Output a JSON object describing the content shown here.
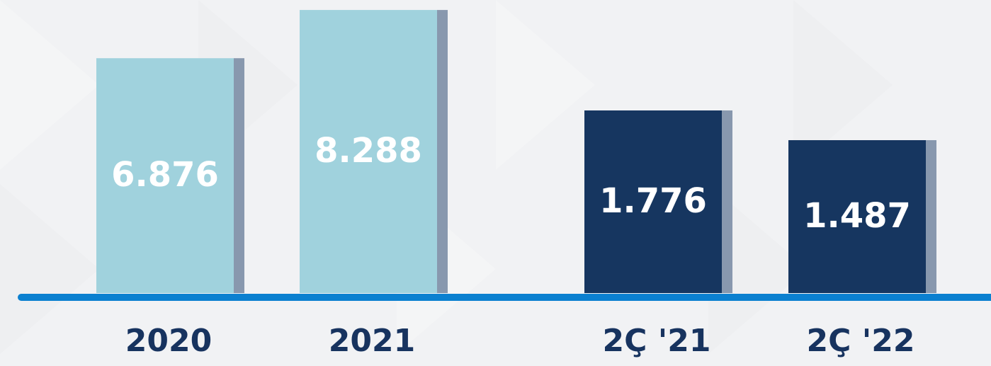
{
  "chart_data": [
    {
      "type": "bar",
      "categories": [
        "2020",
        "2021"
      ],
      "values": [
        6876,
        8288
      ],
      "value_labels": [
        "6.876",
        "8.288"
      ],
      "color": "#a0d2dd",
      "ylim": [
        0,
        8580
      ]
    },
    {
      "type": "bar",
      "categories": [
        "2Ç '21",
        "2Ç '22"
      ],
      "values": [
        1776,
        1487
      ],
      "value_labels": [
        "1.776",
        "1.487"
      ],
      "color": "#163660",
      "ylim": [
        0,
        2850
      ]
    }
  ]
}
